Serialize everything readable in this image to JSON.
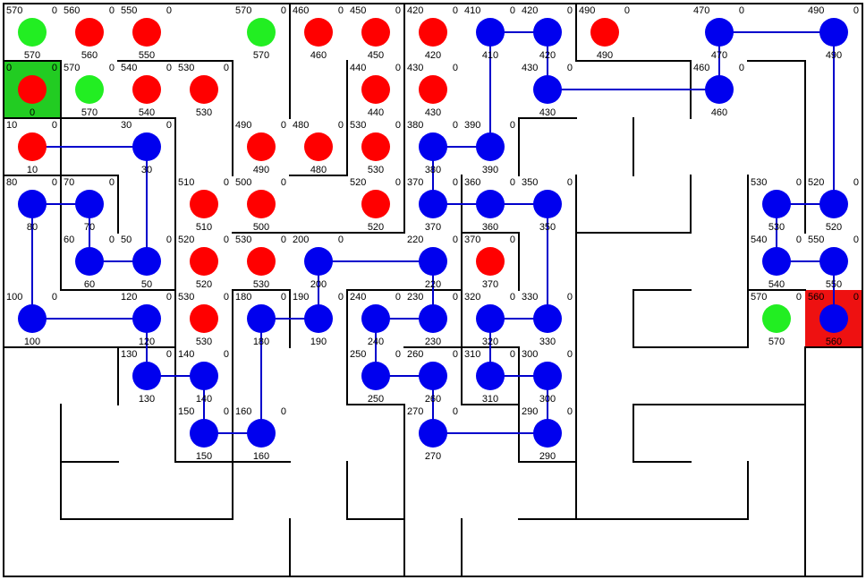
{
  "colors": {
    "background": "#ffffff",
    "wall": "#000000",
    "start_cell": "#22cc22",
    "goal_cell": "#ee1111",
    "node_open": "#ff0000",
    "node_frontier": "#22ee22",
    "node_path": "#0000ee",
    "path_line": "#0000cc",
    "label": "#000000"
  },
  "maze": {
    "cols": 15,
    "rows": 10,
    "start": [
      0,
      1
    ],
    "goal": [
      14,
      5
    ],
    "cells": [
      [
        0,
        0,
        "570",
        "0",
        "570",
        "frontier"
      ],
      [
        1,
        0,
        "560",
        "0",
        "560",
        "open"
      ],
      [
        2,
        0,
        "550",
        "0",
        "550",
        "open"
      ],
      [
        4,
        0,
        "570",
        "0",
        "570",
        "frontier"
      ],
      [
        5,
        0,
        "460",
        "0",
        "460",
        "open"
      ],
      [
        6,
        0,
        "450",
        "0",
        "450",
        "open"
      ],
      [
        7,
        0,
        "420",
        "0",
        "420",
        "open"
      ],
      [
        8,
        0,
        "410",
        "0",
        "410",
        "path"
      ],
      [
        9,
        0,
        "420",
        "0",
        "420",
        "path"
      ],
      [
        10,
        0,
        "490",
        "0",
        "490",
        "open"
      ],
      [
        12,
        0,
        "470",
        "0",
        "470",
        "path"
      ],
      [
        14,
        0,
        "490",
        "0",
        "490",
        "path"
      ],
      [
        0,
        1,
        "0",
        "0",
        "0",
        "open"
      ],
      [
        1,
        1,
        "570",
        "0",
        "570",
        "frontier"
      ],
      [
        2,
        1,
        "540",
        "0",
        "540",
        "open"
      ],
      [
        3,
        1,
        "530",
        "0",
        "530",
        "open"
      ],
      [
        6,
        1,
        "440",
        "0",
        "440",
        "open"
      ],
      [
        7,
        1,
        "430",
        "0",
        "430",
        "open"
      ],
      [
        9,
        1,
        "430",
        "0",
        "430",
        "path"
      ],
      [
        12,
        1,
        "460",
        "0",
        "460",
        "path"
      ],
      [
        0,
        2,
        "10",
        "0",
        "10",
        "open"
      ],
      [
        2,
        2,
        "30",
        "0",
        "30",
        "path"
      ],
      [
        4,
        2,
        "490",
        "0",
        "490",
        "open"
      ],
      [
        5,
        2,
        "480",
        "0",
        "480",
        "open"
      ],
      [
        6,
        2,
        "530",
        "0",
        "530",
        "open"
      ],
      [
        7,
        2,
        "380",
        "0",
        "380",
        "path"
      ],
      [
        8,
        2,
        "390",
        "0",
        "390",
        "path"
      ],
      [
        0,
        3,
        "80",
        "0",
        "80",
        "path"
      ],
      [
        1,
        3,
        "70",
        "0",
        "70",
        "path"
      ],
      [
        3,
        3,
        "510",
        "0",
        "510",
        "open"
      ],
      [
        4,
        3,
        "500",
        "0",
        "500",
        "open"
      ],
      [
        6,
        3,
        "520",
        "0",
        "520",
        "open"
      ],
      [
        7,
        3,
        "370",
        "0",
        "370",
        "path"
      ],
      [
        8,
        3,
        "360",
        "0",
        "360",
        "path"
      ],
      [
        9,
        3,
        "350",
        "0",
        "350",
        "path"
      ],
      [
        13,
        3,
        "530",
        "0",
        "530",
        "path"
      ],
      [
        14,
        3,
        "520",
        "0",
        "520",
        "path"
      ],
      [
        1,
        4,
        "60",
        "0",
        "60",
        "path"
      ],
      [
        2,
        4,
        "50",
        "0",
        "50",
        "path"
      ],
      [
        3,
        4,
        "520",
        "0",
        "520",
        "open"
      ],
      [
        4,
        4,
        "530",
        "0",
        "530",
        "open"
      ],
      [
        5,
        4,
        "200",
        "0",
        "200",
        "path"
      ],
      [
        7,
        4,
        "220",
        "0",
        "220",
        "path"
      ],
      [
        8,
        4,
        "370",
        "0",
        "370",
        "open"
      ],
      [
        13,
        4,
        "540",
        "0",
        "540",
        "path"
      ],
      [
        14,
        4,
        "550",
        "0",
        "550",
        "path"
      ],
      [
        0,
        5,
        "100",
        "0",
        "100",
        "path"
      ],
      [
        2,
        5,
        "120",
        "0",
        "120",
        "path"
      ],
      [
        3,
        5,
        "530",
        "0",
        "530",
        "open"
      ],
      [
        4,
        5,
        "180",
        "0",
        "180",
        "path"
      ],
      [
        5,
        5,
        "190",
        "0",
        "190",
        "path"
      ],
      [
        6,
        5,
        "240",
        "0",
        "240",
        "path"
      ],
      [
        7,
        5,
        "230",
        "0",
        "230",
        "path"
      ],
      [
        8,
        5,
        "320",
        "0",
        "320",
        "path"
      ],
      [
        9,
        5,
        "330",
        "0",
        "330",
        "path"
      ],
      [
        13,
        5,
        "570",
        "0",
        "570",
        "frontier"
      ],
      [
        14,
        5,
        "560",
        "0",
        "560",
        "path"
      ],
      [
        2,
        6,
        "130",
        "0",
        "130",
        "path"
      ],
      [
        3,
        6,
        "140",
        "0",
        "140",
        "path"
      ],
      [
        6,
        6,
        "250",
        "0",
        "250",
        "path"
      ],
      [
        7,
        6,
        "260",
        "0",
        "260",
        "path"
      ],
      [
        8,
        6,
        "310",
        "0",
        "310",
        "path"
      ],
      [
        9,
        6,
        "300",
        "0",
        "300",
        "path"
      ],
      [
        3,
        7,
        "150",
        "0",
        "150",
        "path"
      ],
      [
        4,
        7,
        "160",
        "0",
        "160",
        "path"
      ],
      [
        7,
        7,
        "270",
        "0",
        "270",
        "path"
      ],
      [
        9,
        7,
        "290",
        "0",
        "290",
        "path"
      ]
    ],
    "path_links": [
      [
        [
          8,
          0
        ],
        [
          9,
          0
        ]
      ],
      [
        [
          12,
          0
        ],
        [
          14,
          0
        ]
      ],
      [
        [
          8,
          0
        ],
        [
          8,
          2
        ]
      ],
      [
        [
          9,
          0
        ],
        [
          9,
          1
        ]
      ],
      [
        [
          9,
          1
        ],
        [
          12,
          1
        ]
      ],
      [
        [
          12,
          0
        ],
        [
          12,
          1
        ]
      ],
      [
        [
          14,
          0
        ],
        [
          14,
          3
        ]
      ],
      [
        [
          0,
          2
        ],
        [
          2,
          2
        ]
      ],
      [
        [
          2,
          2
        ],
        [
          2,
          4
        ]
      ],
      [
        [
          7,
          2
        ],
        [
          8,
          2
        ]
      ],
      [
        [
          7,
          2
        ],
        [
          7,
          3
        ]
      ],
      [
        [
          0,
          3
        ],
        [
          1,
          3
        ]
      ],
      [
        [
          0,
          3
        ],
        [
          0,
          5
        ]
      ],
      [
        [
          1,
          3
        ],
        [
          1,
          4
        ]
      ],
      [
        [
          7,
          3
        ],
        [
          9,
          3
        ]
      ],
      [
        [
          9,
          3
        ],
        [
          9,
          5
        ]
      ],
      [
        [
          13,
          3
        ],
        [
          14,
          3
        ]
      ],
      [
        [
          13,
          3
        ],
        [
          13,
          4
        ]
      ],
      [
        [
          1,
          4
        ],
        [
          2,
          4
        ]
      ],
      [
        [
          5,
          4
        ],
        [
          7,
          4
        ]
      ],
      [
        [
          5,
          4
        ],
        [
          5,
          5
        ]
      ],
      [
        [
          7,
          4
        ],
        [
          7,
          5
        ]
      ],
      [
        [
          13,
          4
        ],
        [
          14,
          4
        ]
      ],
      [
        [
          14,
          4
        ],
        [
          14,
          5
        ]
      ],
      [
        [
          0,
          5
        ],
        [
          2,
          5
        ]
      ],
      [
        [
          2,
          5
        ],
        [
          2,
          6
        ]
      ],
      [
        [
          4,
          5
        ],
        [
          5,
          5
        ]
      ],
      [
        [
          4,
          5
        ],
        [
          4,
          7
        ]
      ],
      [
        [
          6,
          5
        ],
        [
          7,
          5
        ]
      ],
      [
        [
          6,
          5
        ],
        [
          6,
          6
        ]
      ],
      [
        [
          8,
          5
        ],
        [
          9,
          5
        ]
      ],
      [
        [
          8,
          5
        ],
        [
          8,
          6
        ]
      ],
      [
        [
          2,
          6
        ],
        [
          3,
          6
        ]
      ],
      [
        [
          3,
          6
        ],
        [
          3,
          7
        ]
      ],
      [
        [
          6,
          6
        ],
        [
          7,
          6
        ]
      ],
      [
        [
          8,
          6
        ],
        [
          9,
          6
        ]
      ],
      [
        [
          9,
          6
        ],
        [
          9,
          7
        ]
      ],
      [
        [
          3,
          7
        ],
        [
          4,
          7
        ]
      ],
      [
        [
          7,
          6
        ],
        [
          7,
          7
        ]
      ],
      [
        [
          7,
          7
        ],
        [
          9,
          7
        ]
      ]
    ]
  }
}
